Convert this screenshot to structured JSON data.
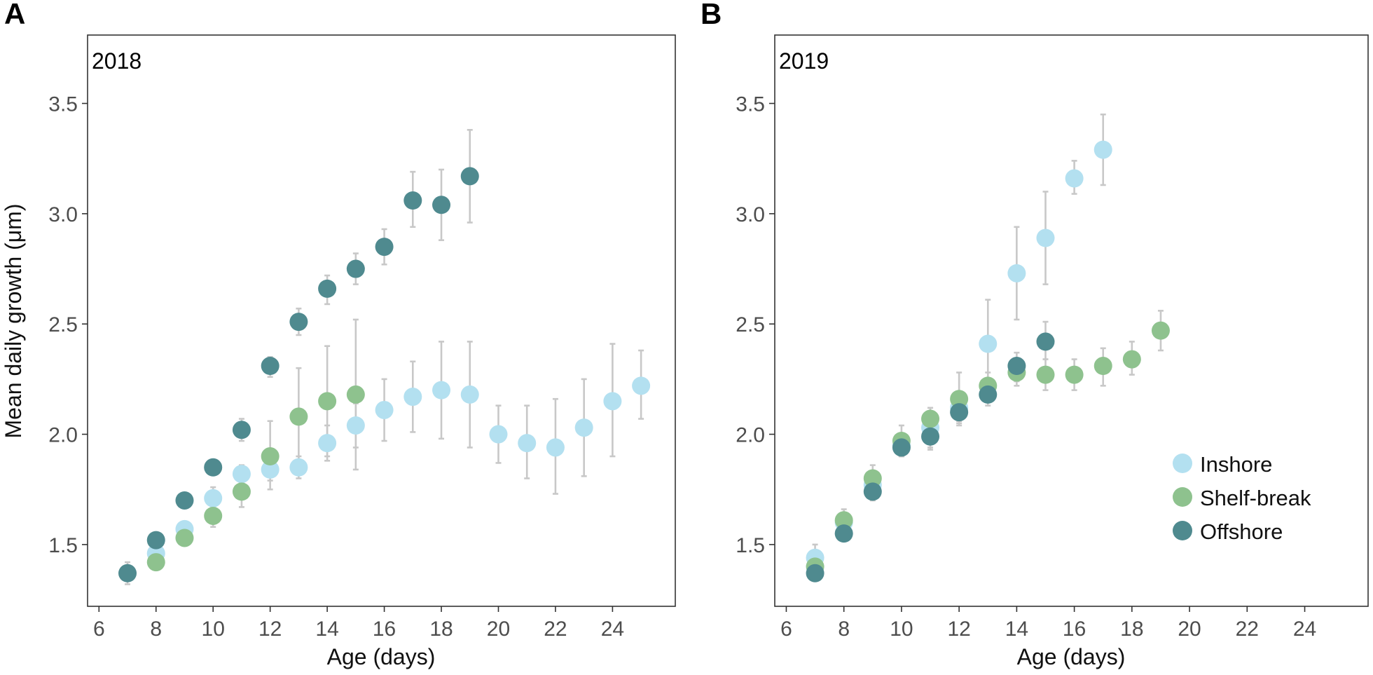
{
  "colors": {
    "Inshore": "#b3e0f0",
    "Shelf-break": "#8ec28e",
    "Offshore": "#4f8a8f",
    "errorbar": "#c8c8c8"
  },
  "chart_data": [
    {
      "type": "scatter",
      "panel": "A",
      "title": "2018",
      "xlabel": "Age (days)",
      "ylabel": "Mean daily growth (μm)",
      "xlim": [
        5.6,
        26.2
      ],
      "ylim": [
        1.22,
        3.81
      ],
      "xticks": [
        6,
        8,
        10,
        12,
        14,
        16,
        18,
        20,
        22,
        24
      ],
      "yticks": [
        1.5,
        2.0,
        2.5,
        3.0,
        3.5
      ],
      "ytick_labels": [
        "1.5",
        "2.0",
        "2.5",
        "3.0",
        "3.5"
      ],
      "grid": false,
      "series": [
        {
          "name": "Inshore",
          "points": [
            {
              "x": 8,
              "y": 1.46,
              "lo": 1.43,
              "hi": 1.49
            },
            {
              "x": 9,
              "y": 1.57,
              "lo": 1.54,
              "hi": 1.6
            },
            {
              "x": 10,
              "y": 1.71,
              "lo": 1.67,
              "hi": 1.76
            },
            {
              "x": 11,
              "y": 1.82,
              "lo": 1.78,
              "hi": 1.86
            },
            {
              "x": 12,
              "y": 1.84,
              "lo": 1.79,
              "hi": 1.89
            },
            {
              "x": 13,
              "y": 1.85,
              "lo": 1.8,
              "hi": 1.9
            },
            {
              "x": 14,
              "y": 1.96,
              "lo": 1.88,
              "hi": 2.04
            },
            {
              "x": 15,
              "y": 2.04,
              "lo": 1.94,
              "hi": 2.14
            },
            {
              "x": 16,
              "y": 2.11,
              "lo": 1.97,
              "hi": 2.25
            },
            {
              "x": 17,
              "y": 2.17,
              "lo": 2.01,
              "hi": 2.33
            },
            {
              "x": 18,
              "y": 2.2,
              "lo": 1.98,
              "hi": 2.42
            },
            {
              "x": 19,
              "y": 2.18,
              "lo": 1.94,
              "hi": 2.42
            },
            {
              "x": 20,
              "y": 2.0,
              "lo": 1.87,
              "hi": 2.13
            },
            {
              "x": 21,
              "y": 1.96,
              "lo": 1.8,
              "hi": 2.13
            },
            {
              "x": 22,
              "y": 1.94,
              "lo": 1.73,
              "hi": 2.16
            },
            {
              "x": 23,
              "y": 2.03,
              "lo": 1.81,
              "hi": 2.25
            },
            {
              "x": 24,
              "y": 2.15,
              "lo": 1.9,
              "hi": 2.41
            },
            {
              "x": 25,
              "y": 2.22,
              "lo": 2.07,
              "hi": 2.38
            }
          ]
        },
        {
          "name": "Shelf-break",
          "points": [
            {
              "x": 8,
              "y": 1.42,
              "lo": 1.39,
              "hi": 1.45
            },
            {
              "x": 9,
              "y": 1.53,
              "lo": 1.5,
              "hi": 1.56
            },
            {
              "x": 10,
              "y": 1.63,
              "lo": 1.58,
              "hi": 1.68
            },
            {
              "x": 11,
              "y": 1.74,
              "lo": 1.67,
              "hi": 1.81
            },
            {
              "x": 12,
              "y": 1.9,
              "lo": 1.75,
              "hi": 2.06
            },
            {
              "x": 13,
              "y": 2.08,
              "lo": 1.86,
              "hi": 2.3
            },
            {
              "x": 14,
              "y": 2.15,
              "lo": 1.9,
              "hi": 2.4
            },
            {
              "x": 15,
              "y": 2.18,
              "lo": 1.84,
              "hi": 2.52
            }
          ]
        },
        {
          "name": "Offshore",
          "points": [
            {
              "x": 7,
              "y": 1.37,
              "lo": 1.32,
              "hi": 1.42
            },
            {
              "x": 8,
              "y": 1.52,
              "lo": 1.49,
              "hi": 1.55
            },
            {
              "x": 9,
              "y": 1.7,
              "lo": 1.68,
              "hi": 1.72
            },
            {
              "x": 10,
              "y": 1.85,
              "lo": 1.83,
              "hi": 1.88
            },
            {
              "x": 11,
              "y": 2.02,
              "lo": 1.97,
              "hi": 2.07
            },
            {
              "x": 12,
              "y": 2.31,
              "lo": 2.26,
              "hi": 2.35
            },
            {
              "x": 13,
              "y": 2.51,
              "lo": 2.45,
              "hi": 2.57
            },
            {
              "x": 14,
              "y": 2.66,
              "lo": 2.59,
              "hi": 2.72
            },
            {
              "x": 15,
              "y": 2.75,
              "lo": 2.68,
              "hi": 2.82
            },
            {
              "x": 16,
              "y": 2.85,
              "lo": 2.77,
              "hi": 2.93
            },
            {
              "x": 17,
              "y": 3.06,
              "lo": 2.94,
              "hi": 3.19
            },
            {
              "x": 18,
              "y": 3.04,
              "lo": 2.88,
              "hi": 3.2
            },
            {
              "x": 19,
              "y": 3.17,
              "lo": 2.96,
              "hi": 3.38
            }
          ]
        }
      ]
    },
    {
      "type": "scatter",
      "panel": "B",
      "title": "2019",
      "xlabel": "Age (days)",
      "ylabel": "",
      "xlim": [
        5.6,
        26.2
      ],
      "ylim": [
        1.22,
        3.81
      ],
      "xticks": [
        6,
        8,
        10,
        12,
        14,
        16,
        18,
        20,
        22,
        24
      ],
      "yticks": [
        1.5,
        2.0,
        2.5,
        3.0,
        3.5
      ],
      "ytick_labels": [
        "1.5",
        "2.0",
        "2.5",
        "3.0",
        "3.5"
      ],
      "grid": false,
      "legend": {
        "position": "bottom-right",
        "entries": [
          "Inshore",
          "Shelf-break",
          "Offshore"
        ]
      },
      "series": [
        {
          "name": "Inshore",
          "points": [
            {
              "x": 7,
              "y": 1.44,
              "lo": 1.39,
              "hi": 1.5
            },
            {
              "x": 8,
              "y": 1.6,
              "lo": 1.57,
              "hi": 1.63
            },
            {
              "x": 9,
              "y": 1.77,
              "lo": 1.74,
              "hi": 1.8
            },
            {
              "x": 10,
              "y": 1.95,
              "lo": 1.91,
              "hi": 1.99
            },
            {
              "x": 11,
              "y": 2.03,
              "lo": 1.93,
              "hi": 2.12
            },
            {
              "x": 12,
              "y": 2.12,
              "lo": 2.06,
              "hi": 2.18
            },
            {
              "x": 13,
              "y": 2.41,
              "lo": 2.22,
              "hi": 2.61
            },
            {
              "x": 14,
              "y": 2.73,
              "lo": 2.52,
              "hi": 2.94
            },
            {
              "x": 15,
              "y": 2.89,
              "lo": 2.68,
              "hi": 3.1
            },
            {
              "x": 16,
              "y": 3.16,
              "lo": 3.09,
              "hi": 3.24
            },
            {
              "x": 17,
              "y": 3.29,
              "lo": 3.13,
              "hi": 3.45
            }
          ]
        },
        {
          "name": "Shelf-break",
          "points": [
            {
              "x": 7,
              "y": 1.4,
              "lo": 1.37,
              "hi": 1.43
            },
            {
              "x": 8,
              "y": 1.61,
              "lo": 1.57,
              "hi": 1.66
            },
            {
              "x": 9,
              "y": 1.8,
              "lo": 1.75,
              "hi": 1.86
            },
            {
              "x": 10,
              "y": 1.97,
              "lo": 1.9,
              "hi": 2.04
            },
            {
              "x": 11,
              "y": 2.07,
              "lo": 2.02,
              "hi": 2.12
            },
            {
              "x": 12,
              "y": 2.16,
              "lo": 2.04,
              "hi": 2.28
            },
            {
              "x": 13,
              "y": 2.22,
              "lo": 2.16,
              "hi": 2.28
            },
            {
              "x": 14,
              "y": 2.28,
              "lo": 2.22,
              "hi": 2.34
            },
            {
              "x": 15,
              "y": 2.27,
              "lo": 2.2,
              "hi": 2.34
            },
            {
              "x": 16,
              "y": 2.27,
              "lo": 2.2,
              "hi": 2.34
            },
            {
              "x": 17,
              "y": 2.31,
              "lo": 2.22,
              "hi": 2.39
            },
            {
              "x": 18,
              "y": 2.34,
              "lo": 2.27,
              "hi": 2.42
            },
            {
              "x": 19,
              "y": 2.47,
              "lo": 2.38,
              "hi": 2.56
            }
          ]
        },
        {
          "name": "Offshore",
          "points": [
            {
              "x": 7,
              "y": 1.37,
              "lo": 1.35,
              "hi": 1.39
            },
            {
              "x": 8,
              "y": 1.55,
              "lo": 1.53,
              "hi": 1.57
            },
            {
              "x": 9,
              "y": 1.74,
              "lo": 1.7,
              "hi": 1.78
            },
            {
              "x": 10,
              "y": 1.94,
              "lo": 1.9,
              "hi": 1.98
            },
            {
              "x": 11,
              "y": 1.99,
              "lo": 1.94,
              "hi": 2.03
            },
            {
              "x": 12,
              "y": 2.1,
              "lo": 2.05,
              "hi": 2.15
            },
            {
              "x": 13,
              "y": 2.18,
              "lo": 2.13,
              "hi": 2.23
            },
            {
              "x": 14,
              "y": 2.31,
              "lo": 2.24,
              "hi": 2.37
            },
            {
              "x": 15,
              "y": 2.42,
              "lo": 2.34,
              "hi": 2.51
            }
          ]
        }
      ]
    }
  ]
}
